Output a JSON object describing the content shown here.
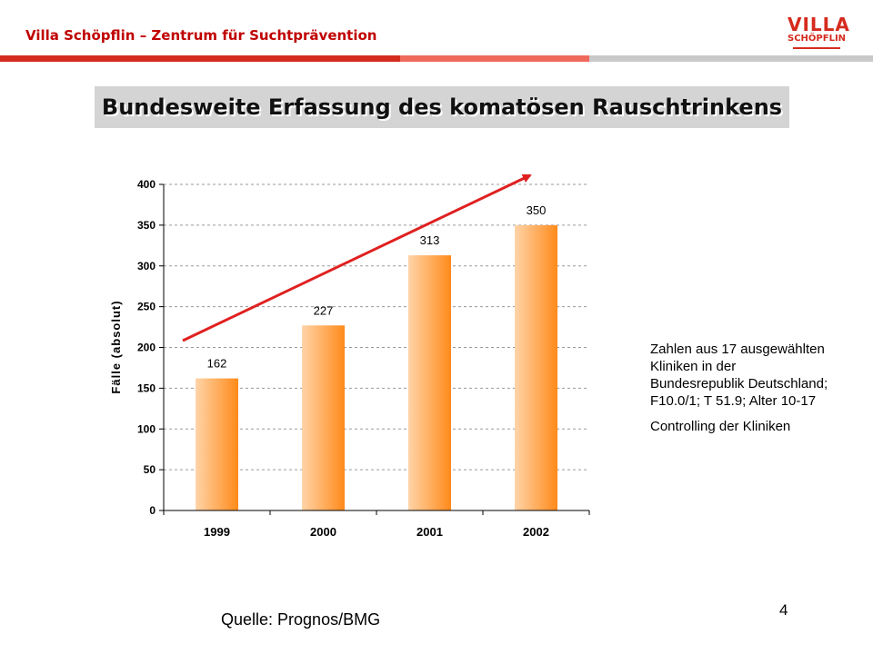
{
  "header": {
    "org_title": "Villa Schöpflin – Zentrum für Suchtprävention",
    "logo_line1": "VILLA",
    "logo_line2": "SCHÖPFLIN"
  },
  "slide_title": "Bundesweite Erfassung des komatösen Rauschtrinkens",
  "chart_data": {
    "type": "bar",
    "categories": [
      "1999",
      "2000",
      "2001",
      "2002"
    ],
    "values": [
      162,
      227,
      313,
      350
    ],
    "data_labels": [
      "162",
      "227",
      "313",
      "350"
    ],
    "ylabel": "Fälle (absolut)",
    "xlabel": "",
    "ylim": [
      0,
      400
    ],
    "yticks": [
      0,
      50,
      100,
      150,
      200,
      250,
      300,
      350,
      400
    ],
    "grid": true,
    "trend_arrow": true,
    "colors": {
      "bar_light": "#ffd4a8",
      "bar_dark": "#ff8a1a",
      "arrow": "#e02020"
    }
  },
  "note": {
    "line1": "Zahlen aus 17 ausgewählten Kliniken in der Bundesrepublik Deutschland; F10.0/1; T 51.9; Alter 10-17",
    "line2": "Controlling der Kliniken"
  },
  "source": "Quelle: Prognos/BMG",
  "page_number": "4"
}
